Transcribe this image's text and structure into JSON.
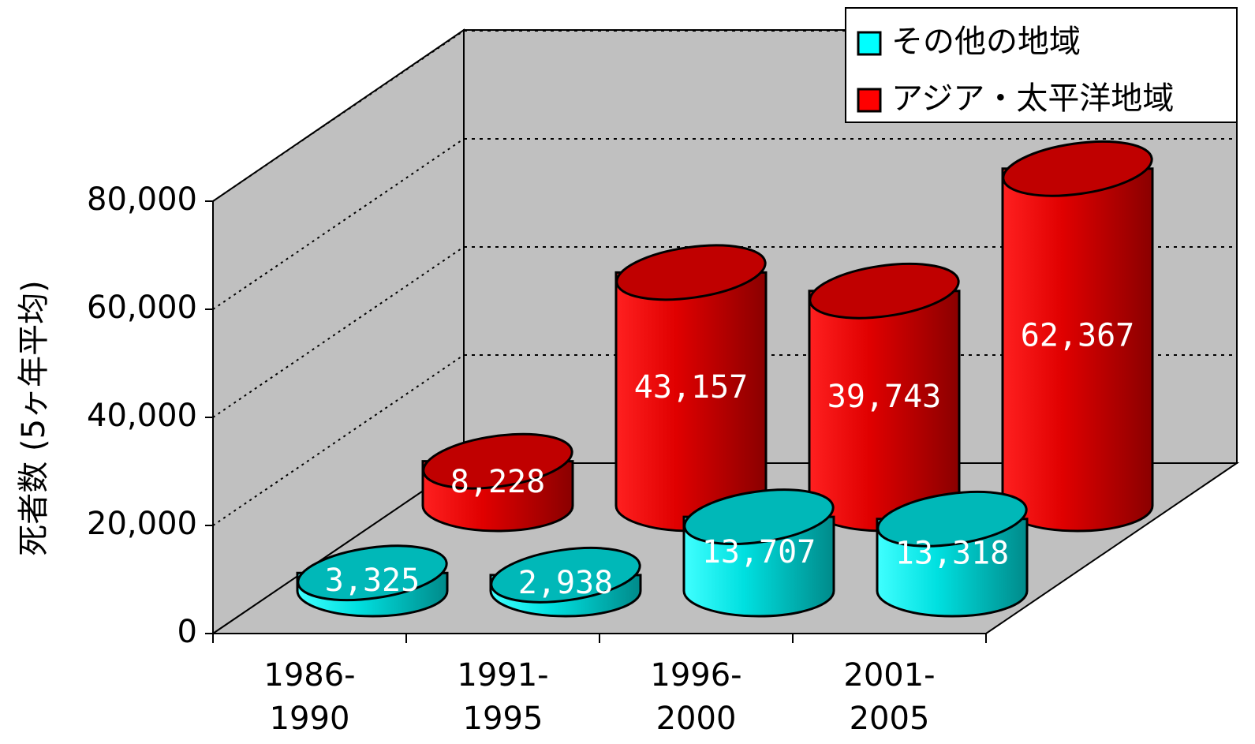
{
  "chart_data": {
    "type": "bar3d",
    "y_label": "死者数 (5ヶ年平均)",
    "categories": [
      [
        "1986-",
        "1990"
      ],
      [
        "1991-",
        "1995"
      ],
      [
        "1996-",
        "2000"
      ],
      [
        "2001-",
        "2005"
      ]
    ],
    "series": [
      {
        "name": "その他の地域",
        "color": "#00ffff",
        "values": [
          3325,
          2938,
          13707,
          13318
        ],
        "value_labels": [
          "3,325",
          "2,938",
          "13,707",
          "13,318"
        ]
      },
      {
        "name": "アジア・太平洋地域",
        "color": "#ff0000",
        "values": [
          8228,
          43157,
          39743,
          62367
        ],
        "value_labels": [
          "8,228",
          "43,157",
          "39,743",
          "62,367"
        ]
      }
    ],
    "ylim": [
      0,
      80000
    ],
    "yticks": [
      0,
      {
        "value": 20000,
        "label": "20,000"
      },
      {
        "value": 40000,
        "label": "40,000"
      },
      {
        "value": 60000,
        "label": "60,000"
      },
      {
        "value": 80000,
        "label": "80,000"
      }
    ],
    "grid": true
  }
}
